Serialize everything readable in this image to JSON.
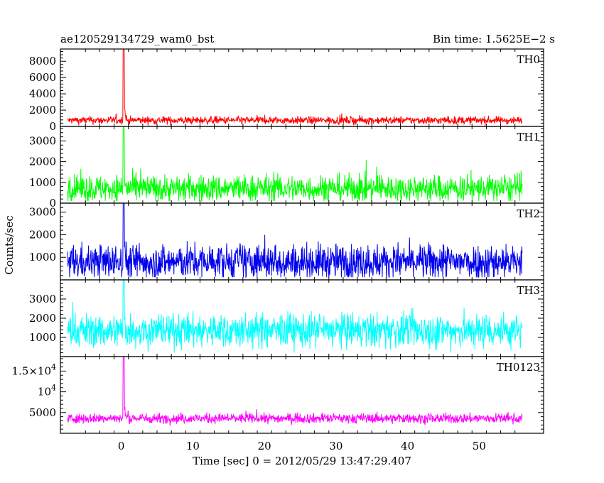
{
  "chart_data": {
    "type": "line",
    "title": "ae120529134729_wam0_bst",
    "subtitle": "Bin time: 1.5625E−2 s",
    "xlabel": "Time [sec] 0 = 2012/05/29 13:47:29.407",
    "ylabel": "Counts/sec",
    "xlim": [
      -8.5,
      59
    ],
    "x_ticks": [
      0,
      10,
      20,
      30,
      40,
      50
    ],
    "x_tick_labels": [
      "0",
      "10",
      "20",
      "30",
      "40",
      "50"
    ],
    "data_x_range": [
      -7.5,
      56
    ],
    "burst_time": 0.3,
    "grid": false,
    "panels": [
      {
        "name": "TH0",
        "color": "#ff0000",
        "ylim": [
          0,
          9500
        ],
        "baseline": 750,
        "noise": 240,
        "peak": 9500,
        "y_ticks": [
          0,
          2000,
          4000,
          6000,
          8000
        ],
        "y_tick_labels": [
          "0",
          "2000",
          "4000",
          "6000",
          "8000"
        ]
      },
      {
        "name": "TH1",
        "color": "#00ff00",
        "ylim": [
          0,
          3700
        ],
        "baseline": 700,
        "noise": 330,
        "peak": 3700,
        "y_ticks": [
          0,
          1000,
          2000,
          3000
        ],
        "y_tick_labels": [
          "0",
          "1000",
          "2000",
          "3000"
        ]
      },
      {
        "name": "TH2",
        "color": "#0000ee",
        "ylim": [
          0,
          3400
        ],
        "baseline": 800,
        "noise": 400,
        "peak": 3400,
        "y_ticks": [
          1000,
          2000,
          3000
        ],
        "y_tick_labels": [
          "1000",
          "2000",
          "3000"
        ]
      },
      {
        "name": "TH3",
        "color": "#00ffff",
        "ylim": [
          0,
          4000
        ],
        "baseline": 1350,
        "noise": 450,
        "peak": 4000,
        "y_ticks": [
          1000,
          2000,
          3000
        ],
        "y_tick_labels": [
          "1000",
          "2000",
          "3000"
        ]
      },
      {
        "name": "TH0123",
        "color": "#ff00ff",
        "ylim": [
          0,
          18500
        ],
        "baseline": 3600,
        "noise": 600,
        "peak": 18500,
        "y_ticks": [
          5000,
          10000,
          15000
        ],
        "y_tick_labels": [
          "5000",
          "10^4",
          "1.5×10^4"
        ]
      }
    ]
  }
}
